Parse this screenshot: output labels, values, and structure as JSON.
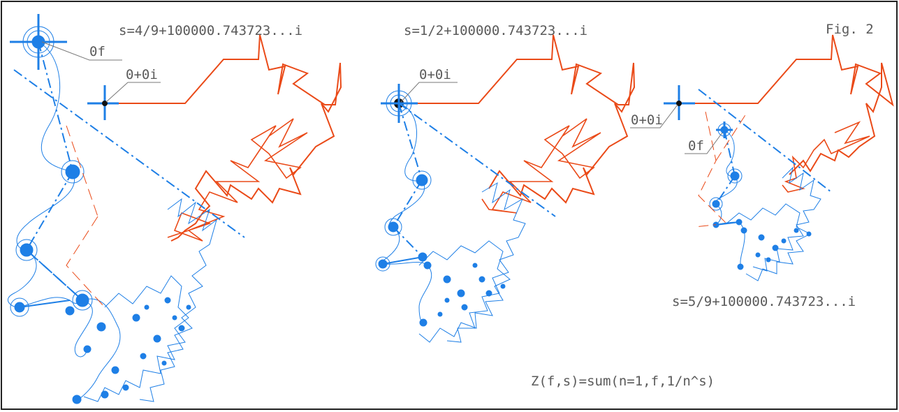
{
  "figure": {
    "fig_label": "Fig. 2",
    "formula": "Z(f,s)=sum(n=1,f,1/n^s)",
    "colors": {
      "zeta_path": "#ea4a18",
      "partial_sums": "#1e7fe6",
      "guide": "#ea4a18",
      "frame": "#222222",
      "text": "#5a5a5a"
    },
    "panels": [
      {
        "s_label": "s=4/9+100000.743723...i",
        "origin_label": "0+0i",
        "end_label": "0f"
      },
      {
        "s_label": "s=1/2+100000.743723...i",
        "origin_label": "0+0i"
      },
      {
        "s_label": "s=5/9+100000.743723...i",
        "origin_label": "0+0i",
        "end_label": "0f"
      }
    ]
  }
}
